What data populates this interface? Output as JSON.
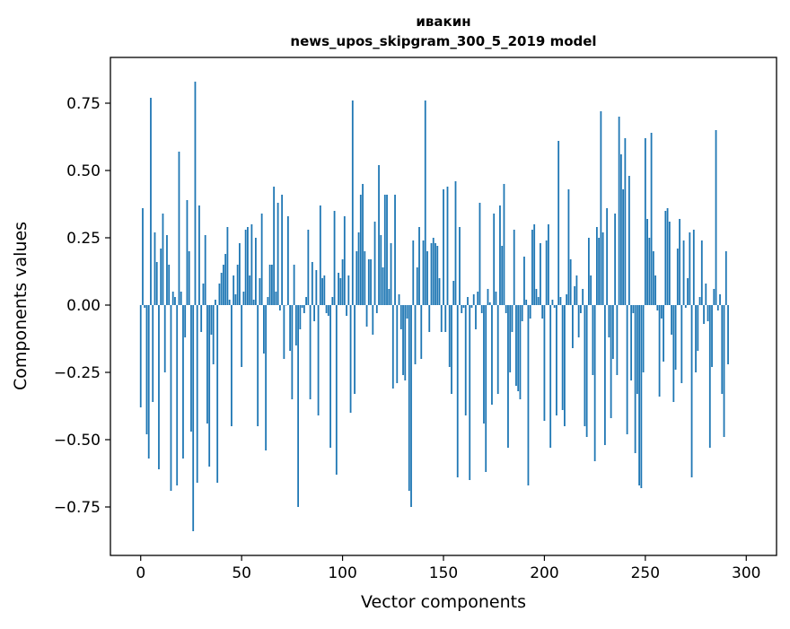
{
  "chart_data": {
    "type": "bar",
    "title": "ивакин",
    "subtitle": "news_upos_skipgram_300_5_2019 model",
    "xlabel": "Vector components",
    "ylabel": "Components values",
    "xlim": [
      -15,
      315
    ],
    "ylim": [
      -0.93,
      0.92
    ],
    "xticks": [
      0,
      50,
      100,
      150,
      200,
      250,
      300
    ],
    "yticks": [
      0.75,
      0.5,
      0.25,
      0.0,
      -0.25,
      -0.5,
      -0.75
    ],
    "ytick_labels": [
      "0.75",
      "0.50",
      "0.25",
      "0.00",
      "−0.25",
      "−0.50",
      "−0.75"
    ],
    "bar_color": "#1f77b4",
    "grid": false,
    "values": [
      -0.38,
      0.36,
      -0.01,
      -0.48,
      -0.57,
      0.77,
      -0.36,
      0.27,
      0.16,
      -0.61,
      0.21,
      0.34,
      -0.25,
      0.26,
      0.15,
      -0.69,
      0.05,
      0.03,
      -0.67,
      0.57,
      0.05,
      -0.57,
      -0.12,
      0.39,
      0.2,
      -0.47,
      -0.84,
      0.83,
      -0.66,
      0.37,
      -0.1,
      0.08,
      0.26,
      -0.44,
      -0.6,
      -0.11,
      -0.22,
      0.02,
      -0.66,
      0.08,
      0.12,
      0.15,
      0.19,
      0.29,
      0.02,
      -0.45,
      0.11,
      0.04,
      0.15,
      0.23,
      -0.23,
      0.05,
      0.28,
      0.29,
      0.11,
      0.3,
      0.02,
      0.25,
      -0.45,
      0.1,
      0.34,
      -0.18,
      -0.54,
      0.03,
      0.15,
      0.15,
      0.44,
      0.05,
      0.38,
      -0.02,
      0.41,
      -0.2,
      0.0,
      0.33,
      -0.17,
      -0.35,
      0.15,
      -0.15,
      -0.75,
      -0.09,
      -0.01,
      -0.03,
      0.03,
      0.28,
      -0.35,
      0.16,
      -0.06,
      0.13,
      -0.41,
      0.37,
      0.1,
      0.11,
      -0.03,
      -0.04,
      -0.53,
      0.03,
      0.35,
      -0.63,
      0.12,
      0.1,
      0.17,
      0.33,
      -0.04,
      0.11,
      -0.4,
      0.76,
      -0.33,
      0.2,
      0.27,
      0.41,
      0.45,
      0.2,
      -0.08,
      0.17,
      0.17,
      -0.11,
      0.31,
      -0.03,
      0.52,
      0.26,
      0.14,
      0.41,
      0.41,
      0.06,
      0.23,
      -0.31,
      0.41,
      -0.29,
      0.04,
      -0.09,
      -0.26,
      -0.28,
      -0.05,
      -0.69,
      -0.75,
      0.24,
      -0.22,
      0.14,
      0.29,
      -0.2,
      0.24,
      0.76,
      0.2,
      -0.1,
      0.23,
      0.25,
      0.23,
      0.22,
      0.1,
      -0.1,
      0.43,
      -0.1,
      0.44,
      -0.23,
      -0.33,
      0.09,
      0.46,
      -0.64,
      0.29,
      -0.03,
      -0.01,
      -0.41,
      0.03,
      -0.65,
      -0.01,
      0.04,
      -0.09,
      0.05,
      0.38,
      -0.03,
      -0.44,
      -0.62,
      0.06,
      0.01,
      -0.37,
      0.34,
      0.05,
      -0.33,
      0.37,
      0.22,
      0.45,
      -0.03,
      -0.53,
      -0.25,
      -0.1,
      0.28,
      -0.3,
      -0.32,
      -0.35,
      -0.06,
      0.18,
      0.02,
      -0.67,
      -0.05,
      0.28,
      0.3,
      0.06,
      0.03,
      0.23,
      -0.05,
      -0.43,
      0.24,
      0.3,
      -0.53,
      0.02,
      -0.01,
      -0.41,
      0.61,
      0.03,
      -0.39,
      -0.45,
      0.04,
      0.43,
      0.17,
      -0.16,
      0.07,
      0.11,
      -0.12,
      -0.03,
      0.06,
      -0.45,
      -0.49,
      0.25,
      0.11,
      -0.26,
      -0.58,
      0.29,
      0.25,
      0.72,
      0.27,
      -0.52,
      0.36,
      -0.12,
      -0.42,
      -0.2,
      0.34,
      -0.26,
      0.7,
      0.56,
      0.43,
      0.62,
      -0.48,
      0.48,
      -0.28,
      -0.03,
      -0.55,
      -0.33,
      -0.67,
      -0.68,
      -0.25,
      0.62,
      0.32,
      0.25,
      0.64,
      0.2,
      0.11,
      -0.02,
      -0.34,
      -0.05,
      -0.21,
      0.35,
      0.36,
      0.31,
      -0.11,
      -0.36,
      -0.24,
      0.21,
      0.32,
      -0.29,
      0.24,
      -0.01,
      0.1,
      0.27,
      -0.64,
      0.28,
      -0.25,
      -0.17,
      0.03,
      0.24,
      -0.07,
      0.08,
      -0.06,
      -0.53,
      -0.23,
      0.06,
      0.65,
      -0.02,
      0.04,
      -0.33,
      -0.49,
      0.2,
      -0.22
    ]
  }
}
